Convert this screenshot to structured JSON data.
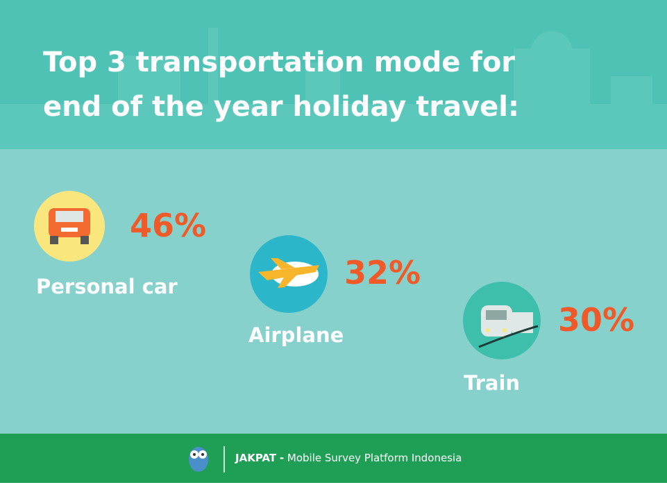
{
  "title": [
    "Top 3 transportation mode for",
    "end of the year holiday travel:"
  ],
  "items": [
    {
      "label": "Personal car",
      "value": "46%"
    },
    {
      "label": "Airplane",
      "value": "32%"
    },
    {
      "label": "Train",
      "value": "30%"
    }
  ],
  "footer": {
    "brand": "JAKPAT",
    "separator": "-",
    "tagline": "Mobile Survey Platform Indonesia"
  }
}
